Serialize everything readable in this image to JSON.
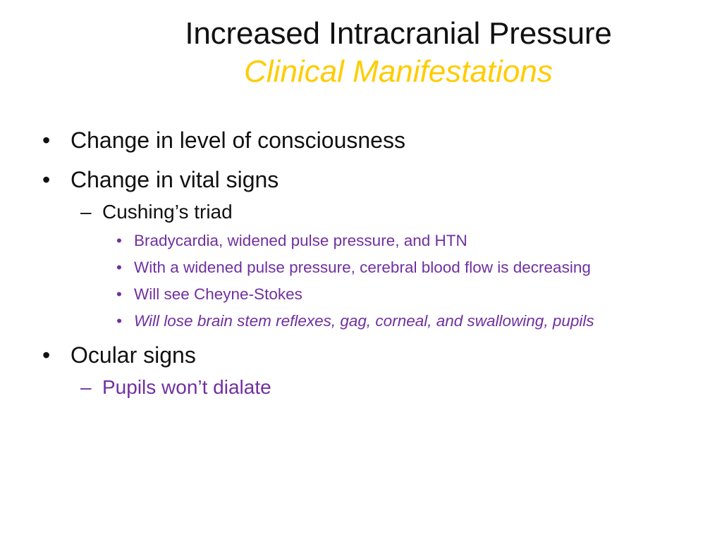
{
  "title": {
    "main": "Increased Intracranial Pressure",
    "sub": "Clinical Manifestations"
  },
  "bullets": {
    "b1": "Change in level of consciousness",
    "b2": "Change in vital signs",
    "b2_sub": "Cushing’s triad",
    "b2_sub_items": [
      "Bradycardia, widened pulse pressure, and HTN",
      "With a widened pulse pressure, cerebral blood flow is decreasing",
      "Will see Cheyne-Stokes",
      "Will lose brain stem reflexes, gag, corneal, and swallowing, pupils"
    ],
    "b3": "Ocular signs",
    "b3_sub": "Pupils won’t dialate"
  },
  "markers": {
    "bullet": "•",
    "dash": "–"
  },
  "colors": {
    "title": "#111111",
    "subtitle": "#ffcc00",
    "body": "#111111",
    "accent": "#7030a0"
  }
}
